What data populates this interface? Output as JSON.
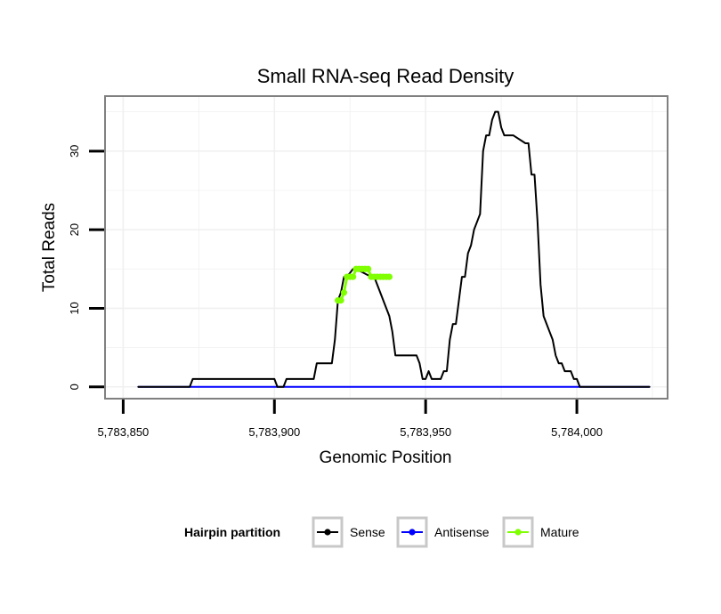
{
  "chart_data": {
    "type": "line",
    "title": "Small RNA-seq Read Density",
    "xlabel": "Genomic Position",
    "ylabel": "Total Reads",
    "xlim": [
      5783844,
      5784030
    ],
    "ylim": [
      -1.5,
      37
    ],
    "x_ticks": [
      5783850,
      5783900,
      5783950,
      5784000
    ],
    "x_tick_labels": [
      "5,783,850",
      "5,783,900",
      "5,783,950",
      "5,784,000"
    ],
    "y_ticks": [
      0,
      10,
      20,
      30
    ],
    "y_tick_labels": [
      "0",
      "10",
      "20",
      "30"
    ],
    "grid": true,
    "legend": {
      "title": "Hairpin partition",
      "position": "bottom",
      "entries": [
        {
          "name": "Sense",
          "color": "#000000"
        },
        {
          "name": "Antisense",
          "color": "#0000ff"
        },
        {
          "name": "Mature",
          "color": "#7fff00"
        }
      ]
    },
    "series": [
      {
        "name": "Sense",
        "color": "#000000",
        "x": [
          5783855,
          5783872,
          5783873,
          5783900,
          5783901,
          5783903,
          5783904,
          5783913,
          5783914,
          5783919,
          5783920,
          5783921,
          5783922,
          5783923,
          5783924,
          5783926,
          5783927,
          5783932,
          5783933,
          5783938,
          5783939,
          5783940,
          5783941,
          5783947,
          5783948,
          5783949,
          5783950,
          5783951,
          5783952,
          5783955,
          5783956,
          5783957,
          5783958,
          5783959,
          5783960,
          5783961,
          5783962,
          5783963,
          5783964,
          5783965,
          5783966,
          5783967,
          5783968,
          5783969,
          5783970,
          5783971,
          5783972,
          5783973,
          5783974,
          5783975,
          5783976,
          5783977,
          5783978,
          5783979,
          5783983,
          5783984,
          5783985,
          5783986,
          5783987,
          5783988,
          5783989,
          5783990,
          5783991,
          5783992,
          5783993,
          5783994,
          5783995,
          5783996,
          5783997,
          5783998,
          5783999,
          5784000,
          5784001,
          5784002,
          5784003,
          5784004,
          5784005,
          5784006,
          5784024
        ],
        "values": [
          0,
          0,
          1,
          1,
          0,
          0,
          1,
          1,
          3,
          3,
          6,
          11,
          12,
          14,
          14,
          15,
          15,
          14,
          14,
          9,
          7,
          4,
          4,
          4,
          3,
          1,
          1,
          2,
          1,
          1,
          2,
          2,
          6,
          8,
          8,
          11,
          14,
          14,
          17,
          18,
          20,
          21,
          22,
          30,
          32,
          32,
          34,
          35,
          35,
          33,
          32,
          32,
          32,
          32,
          31,
          31,
          27,
          27,
          21,
          13,
          9,
          8,
          7,
          6,
          4,
          3,
          3,
          2,
          2,
          2,
          1,
          1,
          0,
          0,
          0,
          0,
          0,
          0,
          0
        ]
      },
      {
        "name": "Antisense",
        "color": "#0000ff",
        "x": [
          5783855,
          5784024
        ],
        "values": [
          0,
          0
        ]
      },
      {
        "name": "Mature",
        "color": "#7fff00",
        "x": [
          5783921,
          5783922,
          5783923,
          5783924,
          5783925,
          5783926,
          5783927,
          5783928,
          5783929,
          5783930,
          5783931,
          5783932,
          5783933,
          5783934,
          5783935,
          5783936,
          5783937,
          5783938
        ],
        "values": [
          11,
          11,
          12,
          14,
          14,
          14,
          15,
          15,
          15,
          15,
          15,
          14,
          14,
          14,
          14,
          14,
          14,
          14
        ]
      }
    ]
  }
}
